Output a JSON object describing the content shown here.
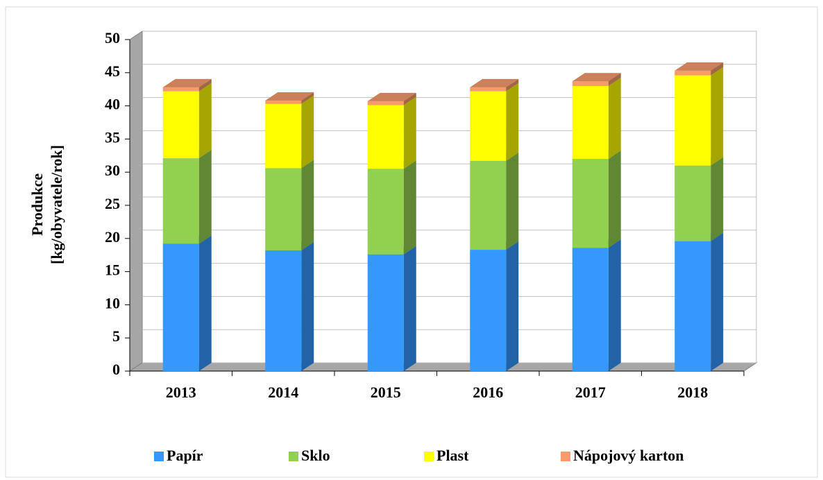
{
  "chart_data": {
    "type": "bar3d_stacked",
    "y_label": [
      "Produkce",
      "[kg/obyvatele/rok]"
    ],
    "categories": [
      "2013",
      "2014",
      "2015",
      "2016",
      "2017",
      "2018"
    ],
    "series": [
      {
        "name": "Papír",
        "color": "#3399ff",
        "values": [
          19.2,
          18.2,
          17.6,
          18.3,
          18.6,
          19.6
        ]
      },
      {
        "name": "Sklo",
        "color": "#92d050",
        "values": [
          12.9,
          12.4,
          12.9,
          13.4,
          13.4,
          11.4
        ]
      },
      {
        "name": "Plast",
        "color": "#ffff00",
        "values": [
          10.1,
          9.7,
          9.6,
          10.5,
          11.0,
          13.6
        ]
      },
      {
        "name": "Nápojový karton",
        "color": "#f79b6e",
        "values": [
          0.6,
          0.5,
          0.6,
          0.6,
          0.7,
          0.7
        ]
      }
    ],
    "ylim": [
      0,
      50
    ],
    "yticks": [
      0,
      5,
      10,
      15,
      20,
      25,
      30,
      35,
      40,
      45,
      50
    ],
    "grid": true,
    "legend": "bottom"
  }
}
